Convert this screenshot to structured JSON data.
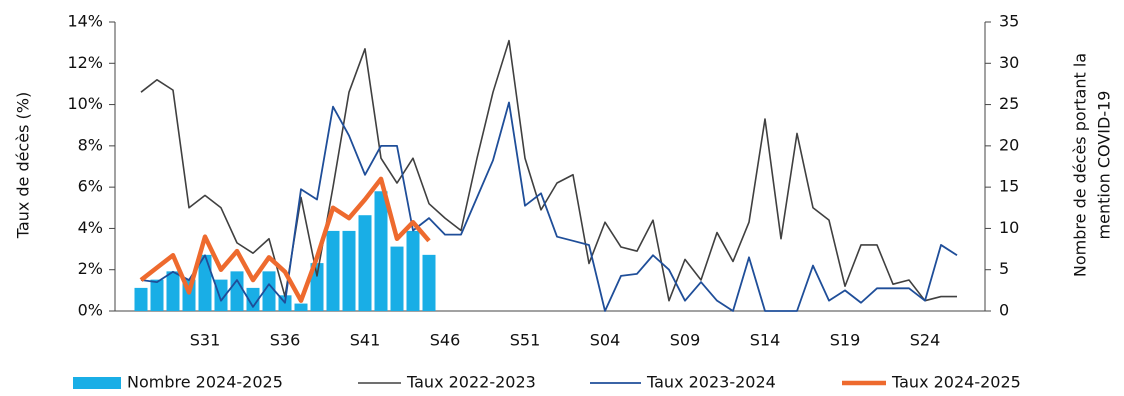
{
  "chart_data": {
    "type": "bar-line",
    "ylabel": "Taux de décès (%)",
    "y2label": [
      "Nombre de décès portant la",
      "mention COVID-19"
    ],
    "categories": [
      null,
      null,
      null,
      null,
      "S31",
      null,
      null,
      null,
      null,
      "S36",
      null,
      null,
      null,
      null,
      "S41",
      null,
      null,
      null,
      null,
      "S46",
      null,
      null,
      null,
      null,
      "S51",
      null,
      null,
      null,
      null,
      "S04",
      null,
      null,
      null,
      null,
      "S09",
      null,
      null,
      null,
      null,
      "S14",
      null,
      null,
      null,
      null,
      "S19",
      null,
      null,
      null,
      null,
      "S24",
      null,
      null
    ],
    "ylim": [
      0,
      14
    ],
    "yticks": [
      {
        "value": 0,
        "label": "0%"
      },
      {
        "value": 2,
        "label": "2%"
      },
      {
        "value": 4,
        "label": "4%"
      },
      {
        "value": 6,
        "label": "6%"
      },
      {
        "value": 8,
        "label": "8%"
      },
      {
        "value": 10,
        "label": "10%"
      },
      {
        "value": 12,
        "label": "12%"
      },
      {
        "value": 14,
        "label": "14%"
      }
    ],
    "y2lim": [
      0,
      35
    ],
    "y2ticks": [
      0,
      5,
      10,
      15,
      20,
      25,
      30,
      35
    ],
    "series": [
      {
        "name": "Nombre 2024-2025",
        "color": "#19aee6",
        "type": "bar",
        "axis": "y2",
        "values": [
          2.8,
          3.8,
          4.8,
          3.8,
          6.8,
          3.8,
          4.8,
          2.8,
          4.8,
          1.9,
          0.9,
          5.8,
          9.7,
          9.7,
          11.6,
          14.5,
          7.8,
          9.7,
          6.8,
          null,
          null,
          null,
          null,
          null,
          null,
          null,
          null,
          null,
          null,
          null,
          null,
          null,
          null,
          null,
          null,
          null,
          null,
          null,
          null,
          null,
          null,
          null,
          null,
          null,
          null,
          null,
          null,
          null,
          null,
          null,
          null,
          null
        ]
      },
      {
        "name": "Taux 2022-2023",
        "color": "#404040",
        "type": "line",
        "values": [
          10.6,
          11.2,
          10.7,
          5.0,
          5.6,
          5.0,
          3.3,
          2.8,
          3.5,
          0.7,
          5.5,
          1.7,
          6.0,
          10.6,
          12.7,
          7.4,
          6.2,
          7.4,
          5.2,
          4.5,
          3.9,
          7.4,
          10.6,
          13.1,
          7.4,
          4.9,
          6.2,
          6.6,
          2.3,
          4.3,
          3.1,
          2.9,
          4.4,
          0.5,
          2.5,
          1.5,
          3.8,
          2.4,
          4.3,
          9.3,
          3.5,
          8.6,
          5.0,
          4.4,
          1.2,
          3.2,
          3.2,
          1.3,
          1.5,
          0.5,
          0.7,
          0.7
        ]
      },
      {
        "name": "Taux 2023-2024",
        "color": "#1f4e99",
        "type": "line",
        "values": [
          1.5,
          1.4,
          1.9,
          1.5,
          2.7,
          0.5,
          1.5,
          0.2,
          1.3,
          0.4,
          5.9,
          5.4,
          9.9,
          8.5,
          6.6,
          8.0,
          8.0,
          3.9,
          4.5,
          3.7,
          3.7,
          5.5,
          7.3,
          10.1,
          5.1,
          5.7,
          3.6,
          3.4,
          3.2,
          0.0,
          1.7,
          1.8,
          2.7,
          2.0,
          0.5,
          1.4,
          0.5,
          0.0,
          2.6,
          0.0,
          0.0,
          0.0,
          2.2,
          0.5,
          1.0,
          0.4,
          1.1,
          1.1,
          1.1,
          0.5,
          3.2,
          2.7
        ]
      },
      {
        "name": "Taux 2024-2025",
        "color": "#ee6a2e",
        "type": "line",
        "values": [
          1.5,
          2.1,
          2.7,
          0.9,
          3.6,
          2.0,
          2.9,
          1.5,
          2.6,
          1.9,
          0.5,
          2.6,
          5.0,
          4.5,
          5.4,
          6.4,
          3.5,
          4.3,
          3.4,
          null,
          null,
          null,
          null,
          null,
          null,
          null,
          null,
          null,
          null,
          null,
          null,
          null,
          null,
          null,
          null,
          null,
          null,
          null,
          null,
          null,
          null,
          null,
          null,
          null,
          null,
          null,
          null,
          null,
          null,
          null,
          null,
          null
        ]
      }
    ]
  }
}
